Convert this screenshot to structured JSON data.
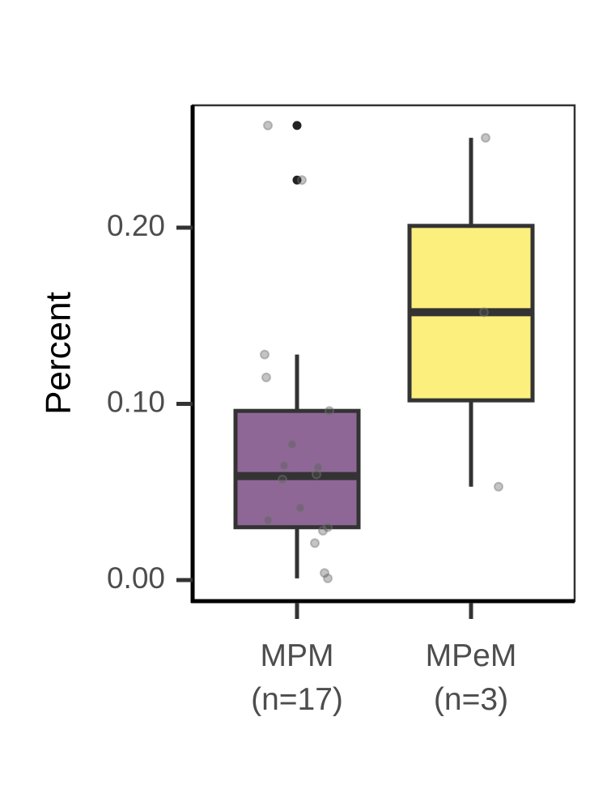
{
  "chart_data": {
    "type": "box",
    "title": "",
    "xlabel": "",
    "ylabel": "Percent",
    "ylim": [
      -0.012,
      0.27
    ],
    "yticks": [
      0.0,
      0.1,
      0.2
    ],
    "ytick_labels": [
      "0.00",
      "0.10",
      "0.20"
    ],
    "grid": false,
    "legend": "none",
    "groups": [
      {
        "category": "MPM",
        "category_label_line1": "MPM",
        "category_label_line2": "(n=17)",
        "color": "#8F6797",
        "min": 0.001,
        "q1": 0.03,
        "median": 0.059,
        "q3": 0.096,
        "max": 0.128,
        "outliers": [
          0.258,
          0.227
        ],
        "points": [
          0.258,
          0.227,
          0.128,
          0.115,
          0.096,
          0.077,
          0.065,
          0.064,
          0.06,
          0.057,
          0.041,
          0.034,
          0.03,
          0.028,
          0.021,
          0.004,
          0.001
        ]
      },
      {
        "category": "MPeM",
        "category_label_line1": "MPeM",
        "category_label_line2": "(n=3)",
        "color": "#FDEF7E",
        "min": 0.053,
        "q1": 0.102,
        "median": 0.152,
        "q3": 0.201,
        "max": 0.251,
        "outliers": [],
        "points": [
          0.251,
          0.152,
          0.053
        ]
      }
    ]
  }
}
